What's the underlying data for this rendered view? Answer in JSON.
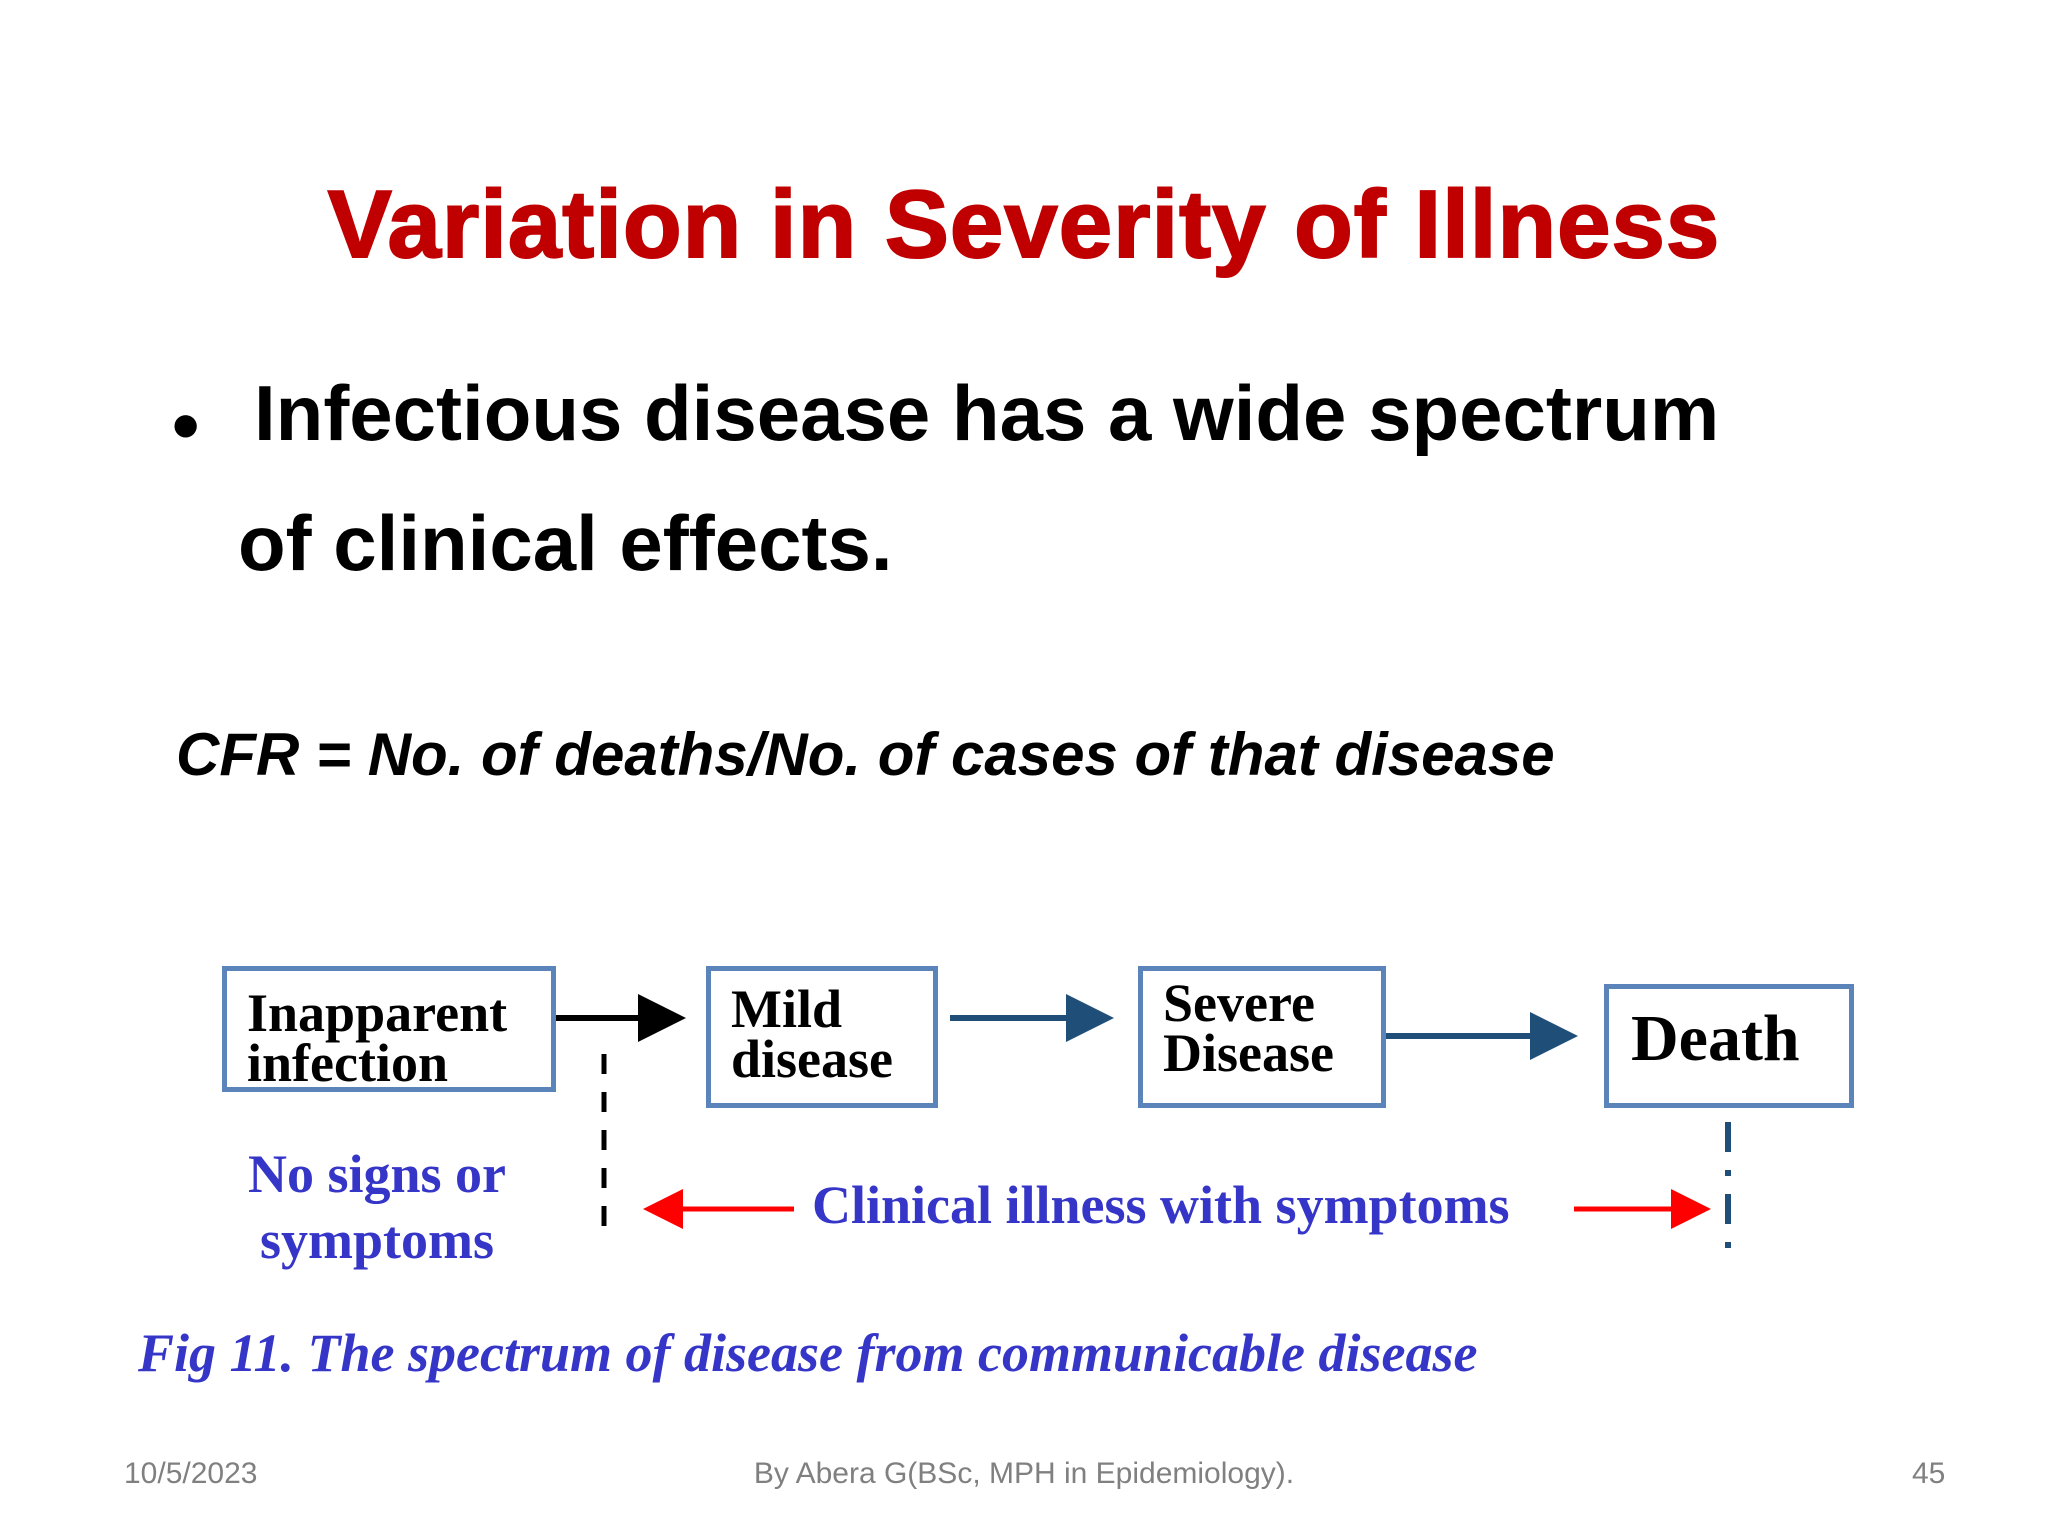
{
  "title": "Variation in Severity of Illness",
  "bullet": {
    "symbol": "•",
    "line1": "Infectious disease has a wide spectrum",
    "line2": "of clinical effects."
  },
  "formula": "CFR = No. of deaths/No. of cases of that disease",
  "diagram": {
    "boxes": [
      {
        "id": "inapparent",
        "label": "Inapparent\ninfection"
      },
      {
        "id": "mild",
        "label": "Mild\ndisease"
      },
      {
        "id": "severe",
        "label": "Severe\nDisease"
      },
      {
        "id": "death",
        "label": "Death"
      }
    ],
    "no_signs_label": "No signs or\nsymptoms",
    "clinical_label": "Clinical illness with symptoms",
    "colors": {
      "box_border": "#5b84bb",
      "arrow_black": "#000000",
      "arrow_navy": "#1f4e79",
      "arrow_red": "#ff0000",
      "label_blue": "#3535c8",
      "title_red": "#c00000"
    }
  },
  "caption": "Fig 11. The spectrum of disease from communicable disease",
  "footer": {
    "date": "10/5/2023",
    "author": "By Abera G(BSc, MPH in Epidemiology).",
    "page": "45"
  }
}
